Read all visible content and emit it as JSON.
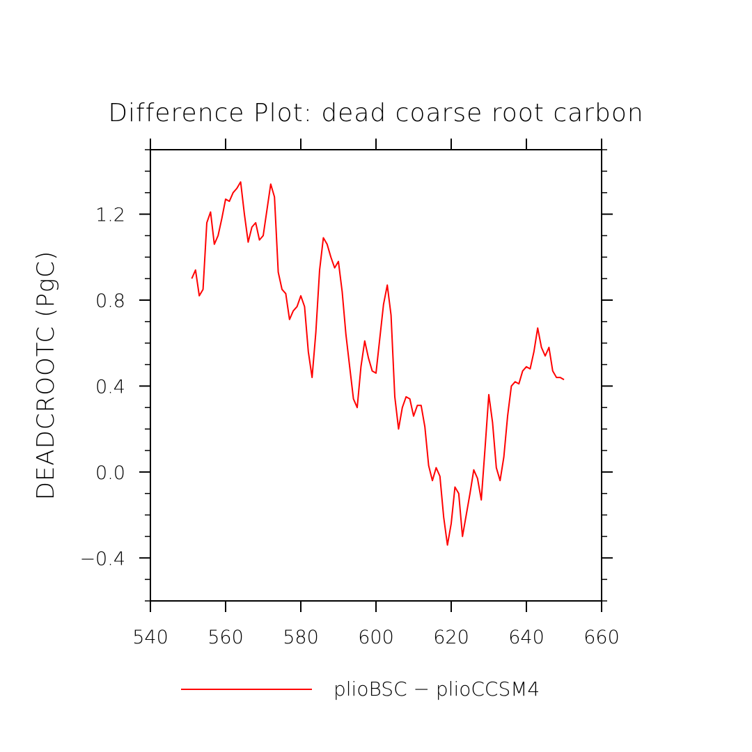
{
  "chart_data": {
    "type": "line",
    "title": "Difference Plot: dead coarse root carbon",
    "xlabel": "",
    "ylabel": "DEADCROOTC  (PgC)",
    "xlim": [
      540,
      660
    ],
    "ylim": [
      -0.6,
      1.5
    ],
    "x_ticks": [
      540,
      560,
      580,
      600,
      620,
      640,
      660
    ],
    "x_tick_labels": [
      "540",
      "560",
      "580",
      "600",
      "620",
      "640",
      "660"
    ],
    "y_ticks": [
      -0.4,
      0.0,
      0.4,
      0.8,
      1.2
    ],
    "y_tick_labels": [
      "−0.4",
      "0.0",
      "0.4",
      "0.8",
      "1.2"
    ],
    "grid": false,
    "legend_position": "bottom",
    "series": [
      {
        "name": "plioBSC − plioCCSM4",
        "color": "#ff0000",
        "x": [
          551,
          552,
          553,
          554,
          555,
          556,
          557,
          558,
          559,
          560,
          561,
          562,
          563,
          564,
          565,
          566,
          567,
          568,
          569,
          570,
          571,
          572,
          573,
          574,
          575,
          576,
          577,
          578,
          579,
          580,
          581,
          582,
          583,
          584,
          585,
          586,
          587,
          588,
          589,
          590,
          591,
          592,
          593,
          594,
          595,
          596,
          597,
          598,
          599,
          600,
          601,
          602,
          603,
          604,
          605,
          606,
          607,
          608,
          609,
          610,
          611,
          612,
          613,
          614,
          615,
          616,
          617,
          618,
          619,
          620,
          621,
          622,
          623,
          624,
          625,
          626,
          627,
          628,
          629,
          630,
          631,
          632,
          633,
          634,
          635,
          636,
          637,
          638,
          639,
          640,
          641,
          642,
          643,
          644,
          645,
          646,
          647,
          648,
          649,
          650
        ],
        "y": [
          0.9,
          0.94,
          0.82,
          0.85,
          1.16,
          1.21,
          1.06,
          1.1,
          1.18,
          1.27,
          1.26,
          1.3,
          1.32,
          1.35,
          1.2,
          1.07,
          1.14,
          1.16,
          1.08,
          1.1,
          1.22,
          1.34,
          1.28,
          0.93,
          0.85,
          0.83,
          0.71,
          0.75,
          0.77,
          0.82,
          0.77,
          0.56,
          0.44,
          0.65,
          0.94,
          1.09,
          1.06,
          1.0,
          0.95,
          0.98,
          0.84,
          0.64,
          0.49,
          0.34,
          0.3,
          0.49,
          0.61,
          0.53,
          0.47,
          0.46,
          0.62,
          0.78,
          0.87,
          0.73,
          0.35,
          0.2,
          0.3,
          0.35,
          0.34,
          0.26,
          0.31,
          0.31,
          0.21,
          0.03,
          -0.04,
          0.02,
          -0.02,
          -0.21,
          -0.34,
          -0.24,
          -0.07,
          -0.1,
          -0.3,
          -0.2,
          -0.1,
          0.01,
          -0.03,
          -0.13,
          0.11,
          0.36,
          0.23,
          0.02,
          -0.04,
          0.07,
          0.26,
          0.4,
          0.42,
          0.41,
          0.47,
          0.49,
          0.48,
          0.56,
          0.67,
          0.58,
          0.54,
          0.58,
          0.47,
          0.44,
          0.44,
          0.43
        ]
      }
    ]
  }
}
